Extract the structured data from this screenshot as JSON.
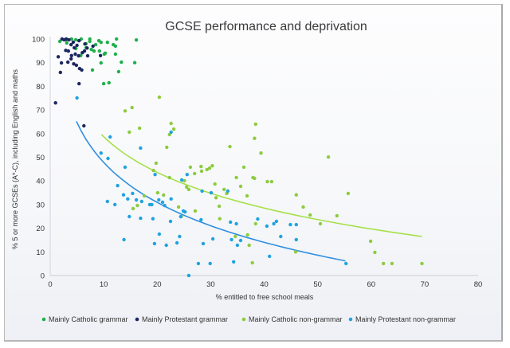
{
  "chart_data": {
    "type": "scatter",
    "title": "GCSE performance and deprivation",
    "xlabel": "% entitled to free school meals",
    "ylabel": "% 5 or more GCSEs (A*-C), including English and maths",
    "xlim": [
      0,
      80
    ],
    "ylim": [
      0,
      100
    ],
    "xticks": [
      0,
      10,
      20,
      30,
      40,
      50,
      60,
      70,
      80
    ],
    "yticks": [
      0,
      10,
      20,
      30,
      40,
      50,
      60,
      70,
      80,
      90,
      100
    ],
    "grid": false,
    "legend_position": "bottom",
    "series": [
      {
        "name": "Mainly Catholic grammar",
        "color": "#20b04b",
        "points": [
          [
            1.8,
            99
          ],
          [
            3.0,
            99.7
          ],
          [
            4.8,
            99.7
          ],
          [
            5.8,
            100
          ],
          [
            6.7,
            98
          ],
          [
            7.4,
            99
          ],
          [
            8.5,
            97.6
          ],
          [
            9.5,
            98.6
          ],
          [
            10.7,
            98.6
          ],
          [
            11.8,
            97.6
          ],
          [
            12.4,
            100
          ],
          [
            10.3,
            94
          ],
          [
            6.7,
            96.3
          ],
          [
            7.7,
            95.6
          ],
          [
            8.2,
            94.9
          ],
          [
            9.2,
            94.9
          ],
          [
            10.1,
            93.6
          ],
          [
            12.2,
            97
          ],
          [
            12.2,
            93.6
          ],
          [
            12.8,
            86.2
          ],
          [
            5.7,
            93
          ],
          [
            9.5,
            89.9
          ],
          [
            13.3,
            90.2
          ],
          [
            7.9,
            86.9
          ],
          [
            11.0,
            81.5
          ],
          [
            10.0,
            81.1
          ],
          [
            3.1,
            98.3
          ],
          [
            4.8,
            96
          ],
          [
            4.0,
            100
          ],
          [
            7.4,
            100
          ],
          [
            9.1,
            99.3
          ],
          [
            16.1,
            99.6
          ],
          [
            15.8,
            90
          ]
        ]
      },
      {
        "name": "Mainly Protestant grammar",
        "color": "#1c2660",
        "points": [
          [
            1.0,
            73
          ],
          [
            1.5,
            92.5
          ],
          [
            2.2,
            100
          ],
          [
            2.6,
            99.7
          ],
          [
            3.0,
            100
          ],
          [
            3.5,
            99.7
          ],
          [
            3.9,
            97.6
          ],
          [
            4.3,
            98.7
          ],
          [
            4.5,
            96.3
          ],
          [
            5.0,
            97.3
          ],
          [
            5.4,
            99.3
          ],
          [
            6.5,
            97.9
          ],
          [
            2.9,
            95.2
          ],
          [
            3.4,
            94.9
          ],
          [
            4.0,
            93
          ],
          [
            4.7,
            93.6
          ],
          [
            5.3,
            92.9
          ],
          [
            6.0,
            94.2
          ],
          [
            6.4,
            94.9
          ],
          [
            7.0,
            92.9
          ],
          [
            8.0,
            97
          ],
          [
            9.4,
            93
          ],
          [
            2.1,
            89.9
          ],
          [
            3.3,
            90.2
          ],
          [
            3.9,
            91.6
          ],
          [
            4.9,
            88.9
          ],
          [
            5.5,
            87.5
          ],
          [
            5.9,
            86.9
          ],
          [
            1.9,
            85.9
          ],
          [
            5.4,
            81.1
          ],
          [
            6.3,
            63.3
          ],
          [
            4.4,
            89.5
          ],
          [
            6.9,
            96.2
          ]
        ]
      },
      {
        "name": "Mainly Catholic non-grammar",
        "color": "#8ccc3e",
        "points": [
          [
            14.8,
            60.6
          ],
          [
            15.3,
            71
          ],
          [
            14.0,
            69.6
          ],
          [
            16.7,
            62.3
          ],
          [
            20.4,
            75.4
          ],
          [
            22.6,
            64.3
          ],
          [
            23.1,
            61.9
          ],
          [
            22.3,
            59.6
          ],
          [
            21.8,
            54.2
          ],
          [
            26.2,
            45.8
          ],
          [
            25.5,
            37.4
          ],
          [
            19.8,
            47.5
          ],
          [
            19.3,
            44.4
          ],
          [
            20.1,
            35
          ],
          [
            17.6,
            33.7
          ],
          [
            16.3,
            29.6
          ],
          [
            15.5,
            28.3
          ],
          [
            22.3,
            41.4
          ],
          [
            25.1,
            40.1
          ],
          [
            27.0,
            43.1
          ],
          [
            28.3,
            44.1
          ],
          [
            28.2,
            46.1
          ],
          [
            29.3,
            44.8
          ],
          [
            30.3,
            46.4
          ],
          [
            29.8,
            45.4
          ],
          [
            31.0,
            32.9
          ],
          [
            33.6,
            54.5
          ],
          [
            34.8,
            41.4
          ],
          [
            35.6,
            37.7
          ],
          [
            38.4,
            64
          ],
          [
            38.2,
            58
          ],
          [
            37.9,
            41.4
          ],
          [
            38.2,
            41.1
          ],
          [
            40.6,
            39.7
          ],
          [
            39.4,
            51.8
          ],
          [
            41.4,
            39.7
          ],
          [
            36.2,
            45.8
          ],
          [
            36.8,
            33.7
          ],
          [
            47.3,
            29
          ],
          [
            52.0,
            50.1
          ],
          [
            55.7,
            34.7
          ],
          [
            46.0,
            34.1
          ],
          [
            48.6,
            25.6
          ],
          [
            50.5,
            21.9
          ],
          [
            53.6,
            25.3
          ],
          [
            59.9,
            14.5
          ],
          [
            60.7,
            9.8
          ],
          [
            62.3,
            5.1
          ],
          [
            63.9,
            5.1
          ],
          [
            69.5,
            5.1
          ],
          [
            31.6,
            29.3
          ],
          [
            33.0,
            34.7
          ],
          [
            34.6,
            16.5
          ],
          [
            36.9,
            17.2
          ],
          [
            38.4,
            21.9
          ],
          [
            37.2,
            12.8
          ],
          [
            45.9,
            10
          ],
          [
            37.8,
            5.4
          ],
          [
            31.7,
            24
          ],
          [
            27.1,
            27.3
          ],
          [
            24.5,
            24.9
          ],
          [
            25.9,
            36.4
          ],
          [
            30.8,
            38.7
          ],
          [
            32.5,
            36.4
          ],
          [
            24.0,
            29
          ],
          [
            21.2,
            34
          ]
        ]
      },
      {
        "name": "Mainly Protestant non-grammar",
        "color": "#1fa3df",
        "points": [
          [
            5.0,
            75.1
          ],
          [
            9.5,
            51.8
          ],
          [
            10.8,
            49.5
          ],
          [
            11.2,
            58.6
          ],
          [
            14.0,
            45.8
          ],
          [
            16.9,
            53.9
          ],
          [
            13.7,
            34.1
          ],
          [
            14.5,
            32.4
          ],
          [
            15.4,
            34.7
          ],
          [
            16.1,
            32.0
          ],
          [
            17.1,
            31.3
          ],
          [
            19.0,
            30
          ],
          [
            19.6,
            42.7
          ],
          [
            20.3,
            32
          ],
          [
            21.0,
            31
          ],
          [
            21.4,
            29.6
          ],
          [
            22.6,
            32.4
          ],
          [
            22.6,
            60.6
          ],
          [
            25.6,
            42.7
          ],
          [
            24.6,
            40.4
          ],
          [
            28.4,
            35.7
          ],
          [
            30.1,
            35
          ],
          [
            13.8,
            15.2
          ],
          [
            10.7,
            31.3
          ],
          [
            12.6,
            38
          ],
          [
            12.1,
            30
          ],
          [
            14.8,
            24.9
          ],
          [
            16.9,
            24.2
          ],
          [
            18.6,
            30
          ],
          [
            19.2,
            24
          ],
          [
            20.4,
            17.5
          ],
          [
            21.7,
            12.8
          ],
          [
            24.9,
            27.3
          ],
          [
            24.4,
            24.9
          ],
          [
            24.2,
            16.5
          ],
          [
            23.7,
            13.8
          ],
          [
            28.6,
            13.5
          ],
          [
            30.4,
            15.5
          ],
          [
            33.2,
            35.7
          ],
          [
            33.7,
            22.6
          ],
          [
            34.8,
            21.9
          ],
          [
            38.8,
            23.9
          ],
          [
            41.8,
            21.9
          ],
          [
            35.6,
            14.8
          ],
          [
            33.9,
            15.2
          ],
          [
            40.5,
            20.9
          ],
          [
            44.9,
            21.5
          ],
          [
            43.1,
            16.5
          ],
          [
            46.0,
            15.2
          ],
          [
            46.0,
            21.5
          ],
          [
            55.3,
            5.1
          ],
          [
            41.0,
            8.1
          ],
          [
            34.3,
            5.8
          ],
          [
            27.7,
            5.1
          ],
          [
            29.9,
            5.1
          ],
          [
            25.9,
            0
          ],
          [
            42.3,
            22.9
          ],
          [
            35.0,
            12.8
          ],
          [
            28.2,
            23.6
          ],
          [
            25.2,
            26.9
          ],
          [
            22.5,
            22.9
          ],
          [
            19.5,
            13.5
          ]
        ]
      }
    ],
    "trendlines": [
      {
        "series": "Mainly Protestant non-grammar",
        "color": "#2e8fe0",
        "type": "logarithmic",
        "x_range": [
          4.9,
          55.2
        ],
        "y_at_start": 65.2,
        "y_at_end": 6.2
      },
      {
        "series": "Mainly Catholic non-grammar",
        "color": "#a6e04a",
        "type": "logarithmic",
        "x_range": [
          9.6,
          69.5
        ],
        "y_at_start": 59.6,
        "y_at_end": 16.5
      }
    ]
  }
}
